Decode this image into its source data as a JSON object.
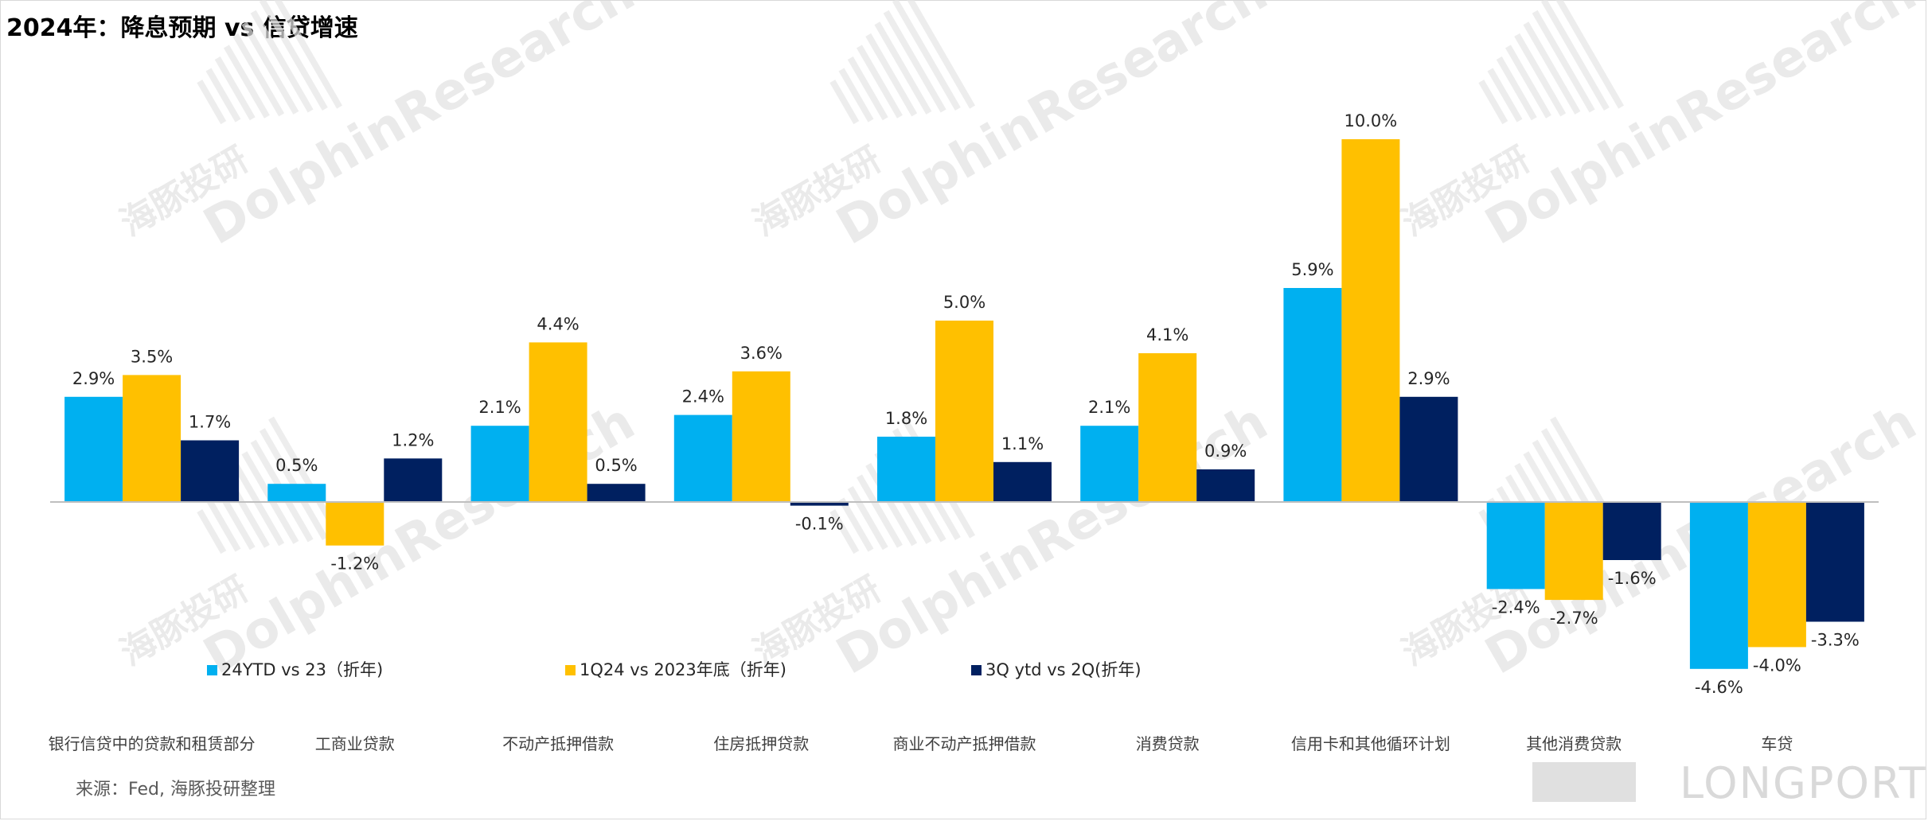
{
  "title": "2024年：降息预期 vs 信贷增速",
  "source": "来源：Fed, 海豚投研整理",
  "watermark": {
    "text_en": "DolphinResearch",
    "text_cn": "海豚投研",
    "brand": "LONGPORT"
  },
  "colors": {
    "series1": "#00b0f0",
    "series2": "#ffc000",
    "series3": "#002060",
    "axis": "#bfbfbf"
  },
  "chart_data": {
    "type": "bar",
    "title": "2024年：降息预期 vs 信贷增速",
    "categories": [
      "银行信贷中的贷款和租赁部分",
      "工商业贷款",
      "不动产抵押借款",
      "住房抵押贷款",
      "商业不动产抵押借款",
      "消费贷款",
      "信用卡和其他循环计划",
      "其他消费贷款",
      "车贷"
    ],
    "series": [
      {
        "name": "24YTD vs 23（折年)",
        "values": [
          2.9,
          0.5,
          2.1,
          2.4,
          1.8,
          2.1,
          5.9,
          -2.4,
          -4.6
        ],
        "labels": [
          "2.9%",
          "0.5%",
          "2.1%",
          "2.4%",
          "1.8%",
          "2.1%",
          "5.9%",
          "-2.4%",
          "-4.6%"
        ]
      },
      {
        "name": "1Q24 vs 2023年底（折年)",
        "values": [
          3.5,
          -1.2,
          4.4,
          3.6,
          5.0,
          4.1,
          10.0,
          -2.7,
          -4.0
        ],
        "labels": [
          "3.5%",
          "-1.2%",
          "4.4%",
          "3.6%",
          "5.0%",
          "4.1%",
          "10.0%",
          "-2.7%",
          "-4.0%"
        ]
      },
      {
        "name": "3Q ytd vs 2Q(折年)",
        "values": [
          1.7,
          1.2,
          0.5,
          -0.1,
          1.1,
          0.9,
          2.9,
          -1.6,
          -3.3
        ],
        "labels": [
          "1.7%",
          "1.2%",
          "0.5%",
          "-0.1%",
          "1.1%",
          "0.9%",
          "2.9%",
          "-1.6%",
          "-3.3%"
        ]
      }
    ],
    "legend": "bottom-left",
    "grid": false
  }
}
